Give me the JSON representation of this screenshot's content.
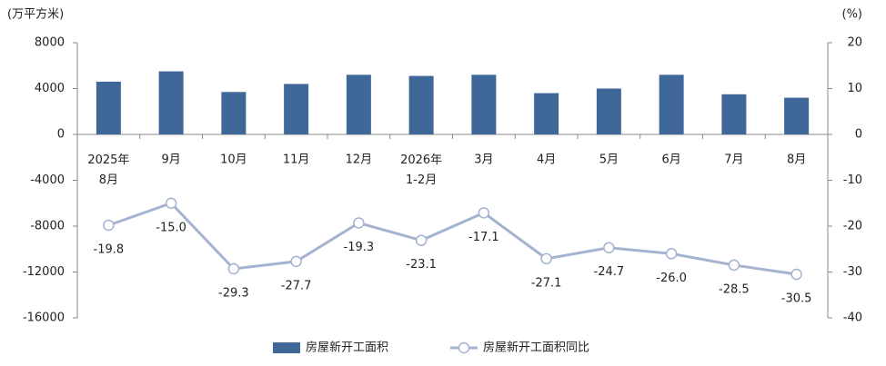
{
  "chart_data": {
    "type": "combo",
    "y_unit": "(万平方米)",
    "y2_unit": "(%)",
    "categories": [
      "2025年\n8月",
      "9月",
      "10月",
      "11月",
      "12月",
      "2026年\n1-2月",
      "3月",
      "4月",
      "5月",
      "6月",
      "7月",
      "8月"
    ],
    "series": [
      {
        "name": "房屋新开工面积",
        "type": "bar",
        "color": "#3f6899",
        "values": [
          4600,
          5500,
          3700,
          4400,
          5200,
          5100,
          5200,
          3600,
          4000,
          5200,
          3500,
          3200
        ]
      },
      {
        "name": "房屋新开工面积同比",
        "type": "line",
        "axis": "y2",
        "color": "#a4b3d0",
        "values": [
          -19.8,
          -15,
          -29.3,
          -27.7,
          -19.3,
          -23.1,
          -17.1,
          -27.1,
          -24.7,
          -26,
          -28.5,
          -30.5
        ],
        "value_labels": [
          "-19.8",
          "-15.0",
          "-29.3",
          "-27.7",
          "-19.3",
          "-23.1",
          "-17.1",
          "-27.1",
          "-24.7",
          "-26.0",
          "-28.5",
          "-30.5"
        ]
      }
    ],
    "ylim": [
      -16000,
      8000
    ],
    "yticks": [
      8000,
      4000,
      0,
      -4000,
      -8000,
      -12000,
      -16000
    ],
    "y2lim": [
      -40,
      20
    ],
    "y2ticks": [
      20,
      10,
      0,
      -10,
      -20,
      -30,
      -40
    ]
  }
}
